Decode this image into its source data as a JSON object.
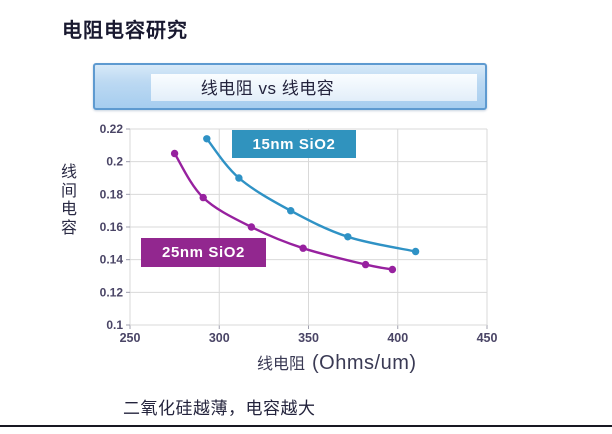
{
  "slide": {
    "title": "电阻电容研究",
    "banner_title": "线电阻 vs 线电容",
    "caption": "二氧化硅越薄，电容越大"
  },
  "chart_data": {
    "type": "scatter",
    "title": "线电阻 vs 线电容",
    "xlabel": "线电阻 (Ohms/um)",
    "xlabel_cjk": "线电阻",
    "xlabel_unit": "(Ohms/um)",
    "ylabel": "线间电容",
    "xlim": [
      250,
      450
    ],
    "ylim": [
      0.1,
      0.22
    ],
    "x_ticks": [
      "250",
      "300",
      "350",
      "400",
      "450"
    ],
    "y_ticks": [
      "0.22",
      "0.2",
      "0.18",
      "0.16",
      "0.14",
      "0.12",
      "0.1"
    ],
    "grid": true,
    "legend_position": "inline-boxed-labels",
    "grid_color": "#d9d9d9",
    "tick_mark_color": "#a0a0ae",
    "tick_label_color": "#4a4566",
    "series": [
      {
        "name": "15nm SiO2",
        "color": "#2f92c5",
        "label_bg": "#3093be",
        "points": [
          [
            293,
            0.214
          ],
          [
            311,
            0.19
          ],
          [
            340,
            0.17
          ],
          [
            372,
            0.154
          ],
          [
            410,
            0.145
          ]
        ]
      },
      {
        "name": "25nm SiO2",
        "color": "#97219f",
        "label_bg": "#92278f",
        "points": [
          [
            275,
            0.205
          ],
          [
            291,
            0.178
          ],
          [
            318,
            0.16
          ],
          [
            347,
            0.147
          ],
          [
            382,
            0.137
          ],
          [
            397,
            0.134
          ]
        ]
      }
    ]
  },
  "colors": {
    "banner_border": "#5e9ad0",
    "accent_blue": "#3093be",
    "accent_purple": "#92278f",
    "text_dark": "#20203a",
    "bottom_rule": "#181822"
  }
}
